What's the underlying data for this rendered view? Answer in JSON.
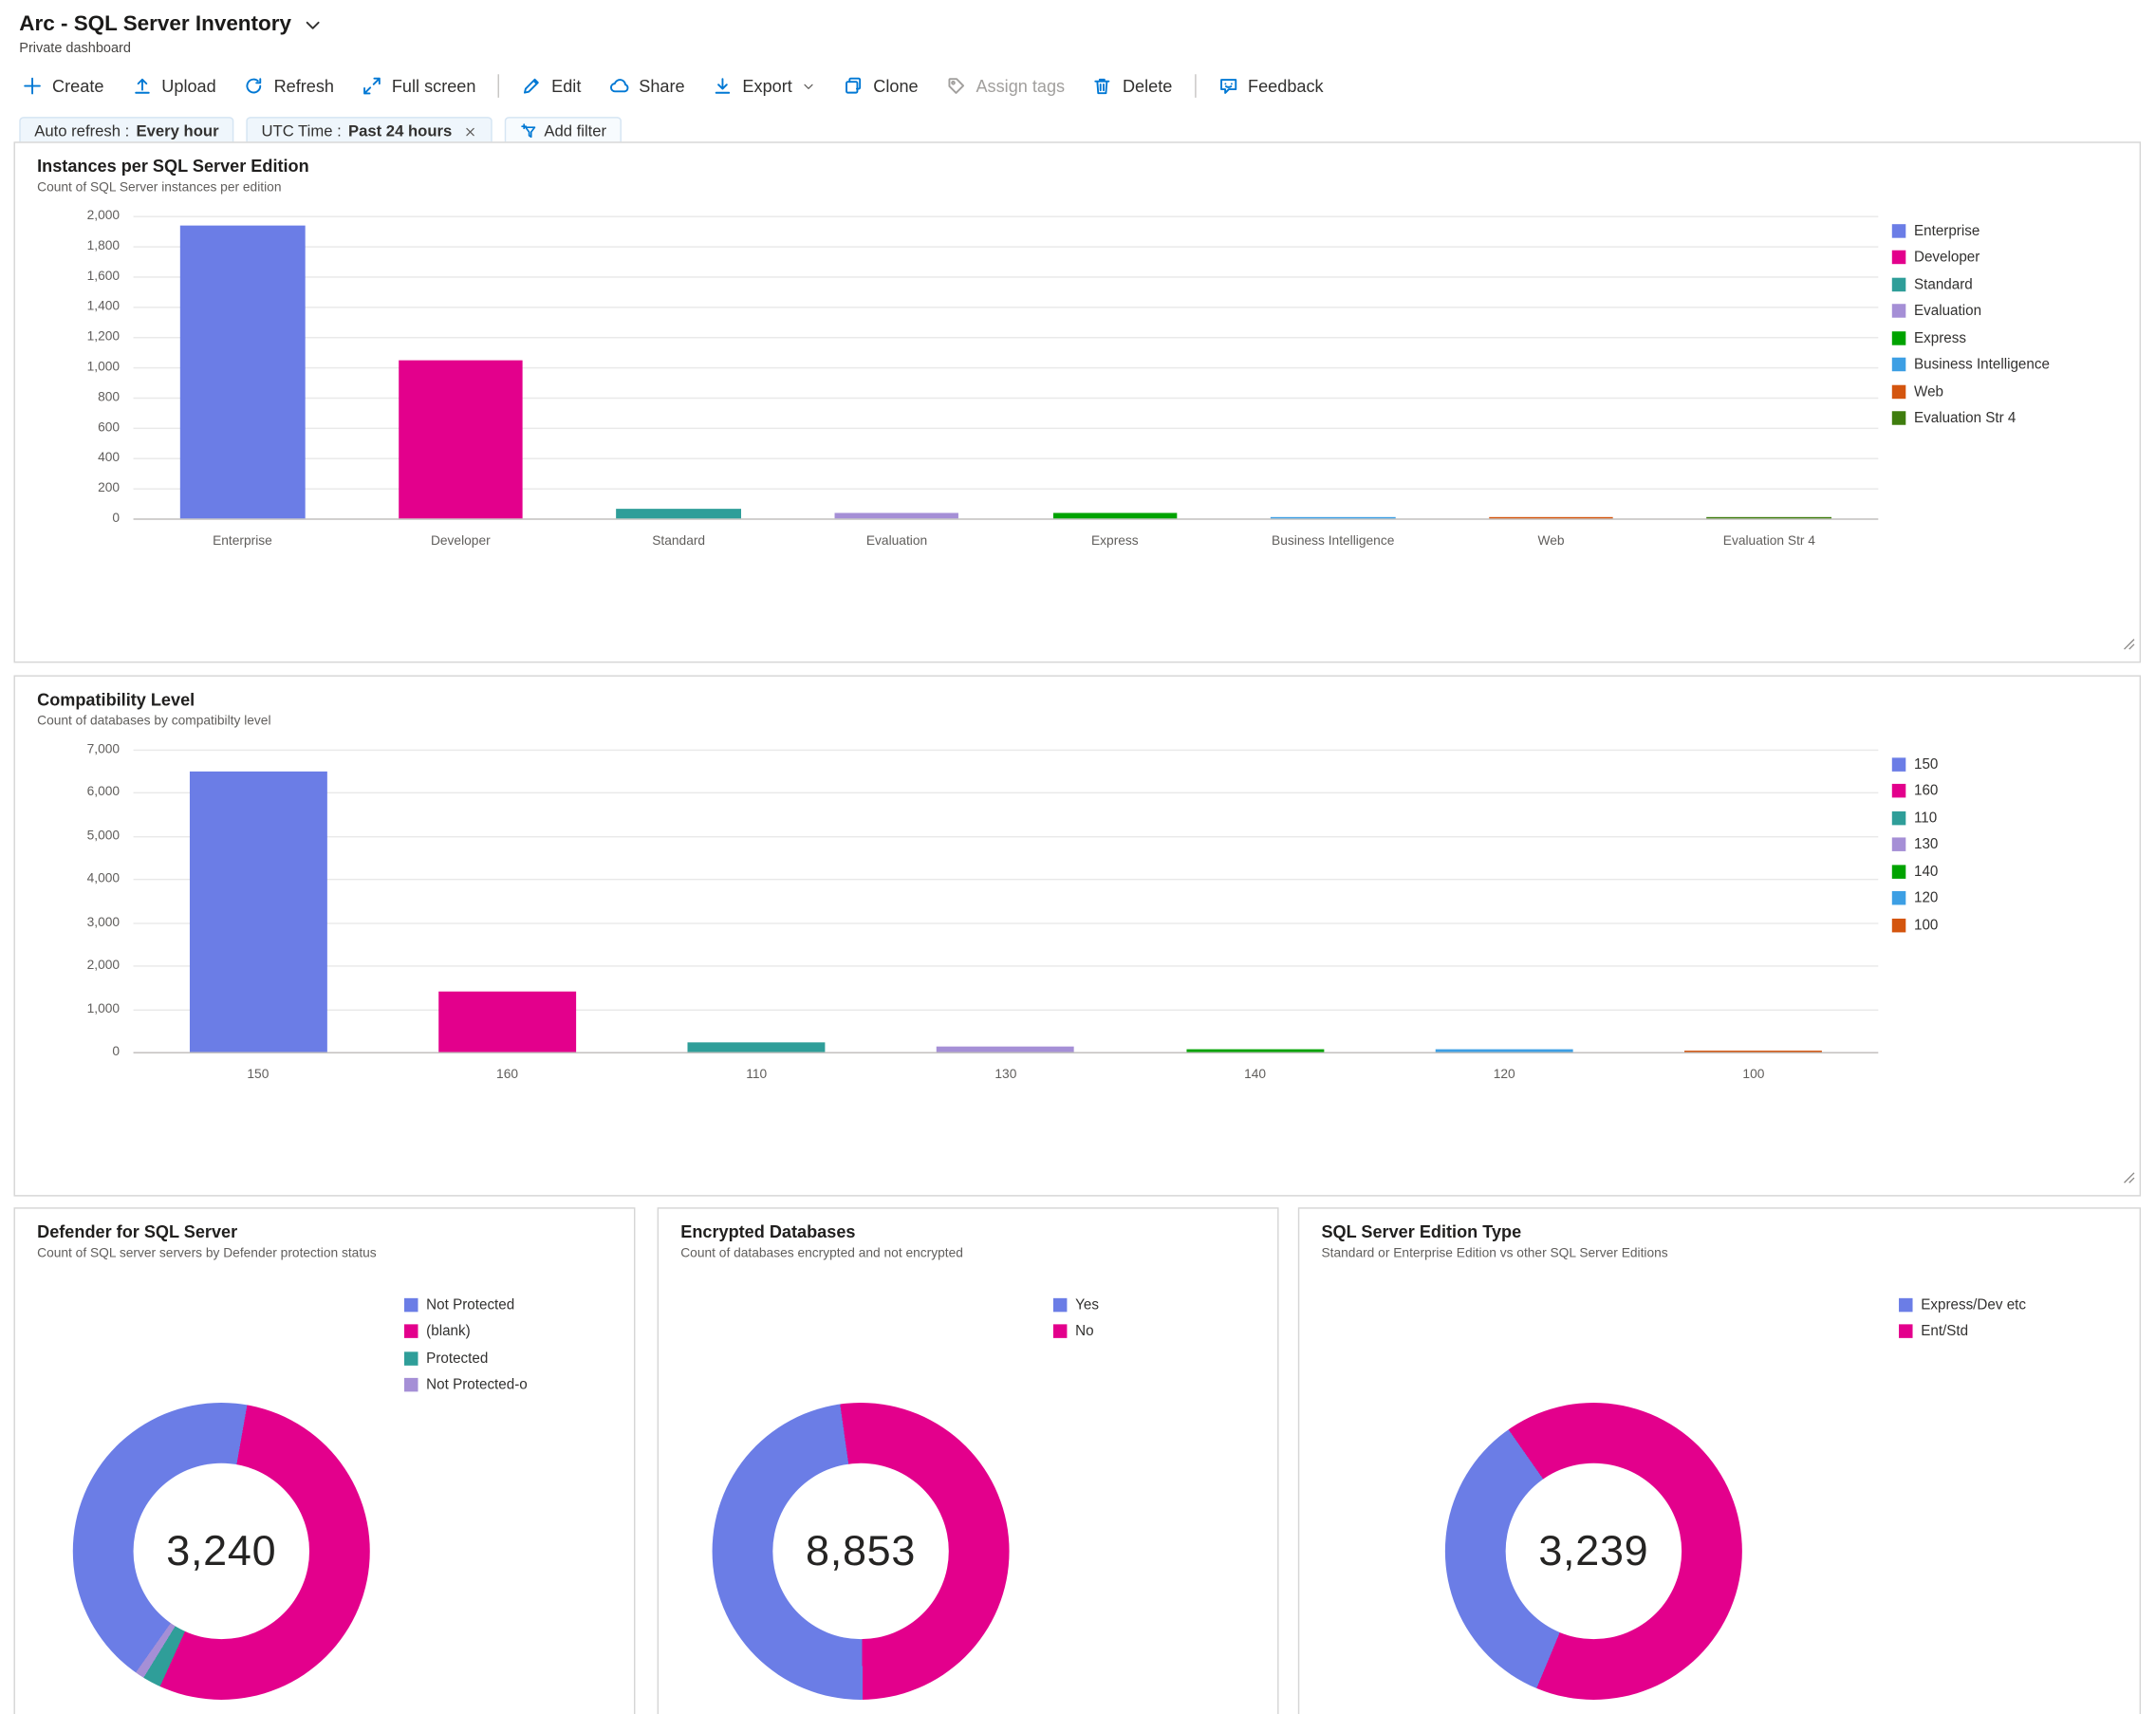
{
  "header": {
    "title": "Arc - SQL Server Inventory",
    "subtitle": "Private dashboard"
  },
  "toolbar": {
    "items": [
      {
        "id": "create",
        "label": "Create",
        "icon": "plus-icon"
      },
      {
        "id": "upload",
        "label": "Upload",
        "icon": "upload-icon"
      },
      {
        "id": "refresh",
        "label": "Refresh",
        "icon": "refresh-icon"
      },
      {
        "id": "fullscreen",
        "label": "Full screen",
        "icon": "fullscreen-icon",
        "divider_after": true
      },
      {
        "id": "edit",
        "label": "Edit",
        "icon": "edit-icon"
      },
      {
        "id": "share",
        "label": "Share",
        "icon": "share-icon"
      },
      {
        "id": "export",
        "label": "Export",
        "icon": "export-icon",
        "chevron": true
      },
      {
        "id": "clone",
        "label": "Clone",
        "icon": "clone-icon"
      },
      {
        "id": "assign-tags",
        "label": "Assign tags",
        "icon": "tag-icon",
        "disabled": true
      },
      {
        "id": "delete",
        "label": "Delete",
        "icon": "delete-icon",
        "divider_after": true
      },
      {
        "id": "feedback",
        "label": "Feedback",
        "icon": "feedback-icon"
      }
    ]
  },
  "filters": {
    "auto_refresh_label": "Auto refresh :",
    "auto_refresh_value": "Every hour",
    "utc_label": "UTC Time :",
    "utc_value": "Past 24 hours",
    "add_filter_label": "Add filter"
  },
  "palette": {
    "accent": "#0078d4",
    "blue": "#6b7de6",
    "magenta": "#e3008c",
    "teal": "#2f9e99",
    "purple": "#a58fd6",
    "green": "#00a300",
    "lightblue": "#3d9fe4",
    "orange": "#d4550e",
    "darkgreen": "#3f7d0e"
  },
  "chart_data": [
    {
      "id": "editions",
      "type": "bar",
      "title": "Instances per SQL Server Edition",
      "subtitle": "Count of SQL Server instances per edition",
      "categories": [
        "Enterprise",
        "Developer",
        "Standard",
        "Evaluation",
        "Express",
        "Business Intelligence",
        "Web",
        "Evaluation Str 4"
      ],
      "values": [
        1940,
        1050,
        60,
        40,
        35,
        8,
        5,
        3
      ],
      "colors": [
        "#6b7de6",
        "#e3008c",
        "#2f9e99",
        "#a58fd6",
        "#00a300",
        "#3d9fe4",
        "#d4550e",
        "#3f7d0e"
      ],
      "ymax": 2000,
      "ystep": 200,
      "grid": true,
      "legend_position": "right"
    },
    {
      "id": "compat",
      "type": "bar",
      "title": "Compatibility Level",
      "subtitle": "Count of databases by compatibilty level",
      "categories": [
        "150",
        "160",
        "110",
        "130",
        "140",
        "120",
        "100"
      ],
      "values": [
        6500,
        1400,
        230,
        120,
        80,
        60,
        15
      ],
      "colors": [
        "#6b7de6",
        "#e3008c",
        "#2f9e99",
        "#a58fd6",
        "#00a300",
        "#3d9fe4",
        "#d4550e"
      ],
      "ymax": 7000,
      "ystep": 1000,
      "grid": true,
      "legend_position": "right"
    },
    {
      "id": "defender",
      "type": "donut",
      "title": "Defender for SQL Server",
      "subtitle": "Count of SQL server servers by Defender protection status",
      "center_value": "3,240",
      "rotate": 10,
      "segments": [
        {
          "label": "(blank)",
          "color": "#e3008c",
          "pct": 54
        },
        {
          "label": "Protected",
          "color": "#2f9e99",
          "pct": 2
        },
        {
          "label": "Not Protected-o",
          "color": "#a58fd6",
          "pct": 1
        },
        {
          "label": "Not Protected",
          "color": "#6b7de6",
          "pct": 43
        }
      ],
      "legend": [
        {
          "label": "Not Protected",
          "color": "#6b7de6"
        },
        {
          "label": "(blank)",
          "color": "#e3008c"
        },
        {
          "label": "Protected",
          "color": "#2f9e99"
        },
        {
          "label": "Not Protected-o",
          "color": "#a58fd6"
        }
      ]
    },
    {
      "id": "encrypted",
      "type": "donut",
      "title": "Encrypted Databases",
      "subtitle": "Count of databases encrypted and not encrypted",
      "center_value": "8,853",
      "rotate": -8,
      "segments": [
        {
          "label": "No",
          "color": "#e3008c",
          "pct": 52
        },
        {
          "label": "Yes",
          "color": "#6b7de6",
          "pct": 48
        }
      ],
      "legend": [
        {
          "label": "Yes",
          "color": "#6b7de6"
        },
        {
          "label": "No",
          "color": "#e3008c"
        }
      ]
    },
    {
      "id": "edition_type",
      "type": "donut",
      "title": "SQL Server Edition Type",
      "subtitle": "Standard or Enterprise Edition vs other SQL Server Editions",
      "center_value": "3,239",
      "rotate": -35,
      "segments": [
        {
          "label": "Ent/Std",
          "color": "#e3008c",
          "pct": 66
        },
        {
          "label": "Express/Dev etc",
          "color": "#6b7de6",
          "pct": 34
        }
      ],
      "legend": [
        {
          "label": "Express/Dev etc",
          "color": "#6b7de6"
        },
        {
          "label": "Ent/Std",
          "color": "#e3008c"
        }
      ]
    }
  ]
}
